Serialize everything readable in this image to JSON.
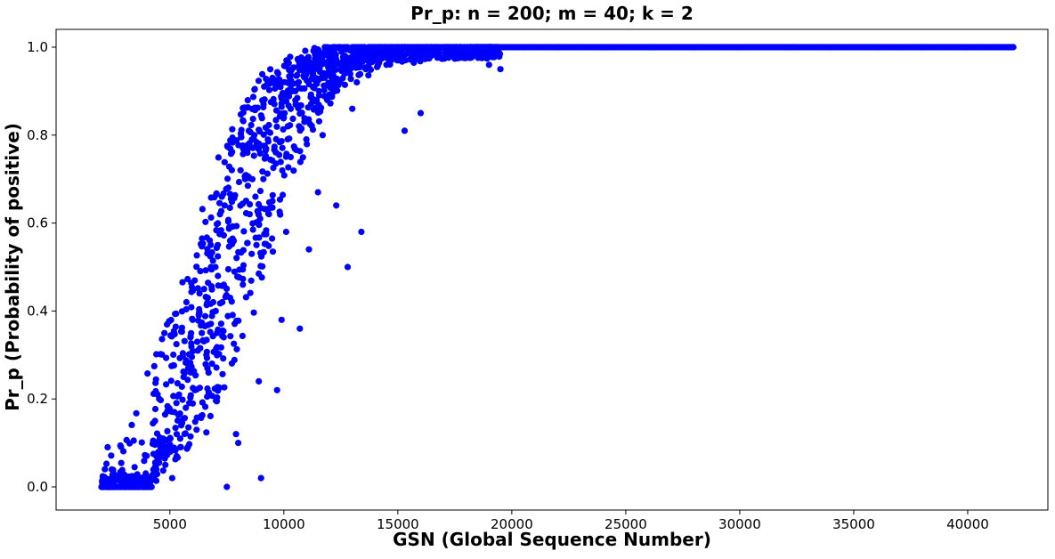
{
  "chart_data": {
    "type": "scatter",
    "title": "Pr_p: n = 200; m = 40; k = 2",
    "xlabel": "GSN (Global Sequence Number)",
    "ylabel": "Pr_p (Probability of positive)",
    "xlim": [
      0,
      43500
    ],
    "ylim": [
      -0.05,
      1.05
    ],
    "xticks": [
      5000,
      10000,
      15000,
      20000,
      25000,
      30000,
      35000,
      40000
    ],
    "xtick_labels": [
      "5000",
      "10000",
      "15000",
      "20000",
      "25000",
      "30000",
      "35000",
      "40000"
    ],
    "yticks": [
      0.0,
      0.2,
      0.4,
      0.6,
      0.8,
      1.0
    ],
    "ytick_labels": [
      "0.0",
      "0.2",
      "0.4",
      "0.6",
      "0.8",
      "1.0"
    ],
    "grid": false,
    "legend": "none",
    "series": [
      {
        "color": "#0000ff",
        "marker": "circle",
        "x_range": [
          2000,
          42000
        ],
        "points": [
          [
            2000,
            0.0
          ],
          [
            2400,
            0.0
          ],
          [
            2800,
            0.0
          ],
          [
            3200,
            0.0
          ],
          [
            3600,
            0.0
          ],
          [
            4000,
            0.0
          ],
          [
            3400,
            0.005
          ],
          [
            3900,
            0.01
          ],
          [
            4200,
            0.0
          ],
          [
            4300,
            0.02
          ],
          [
            4400,
            0.04
          ],
          [
            4500,
            0.06
          ],
          [
            4600,
            0.1
          ],
          [
            4700,
            0.11
          ],
          [
            4800,
            0.05
          ],
          [
            5000,
            0.08
          ],
          [
            5100,
            0.02
          ],
          [
            5200,
            0.17
          ],
          [
            5300,
            0.12
          ],
          [
            5400,
            0.21
          ],
          [
            5500,
            0.14
          ],
          [
            5600,
            0.25
          ],
          [
            5700,
            0.18
          ],
          [
            5800,
            0.27
          ],
          [
            5900,
            0.34
          ],
          [
            6000,
            0.38
          ],
          [
            6100,
            0.22
          ],
          [
            6200,
            0.33
          ],
          [
            6300,
            0.44
          ],
          [
            6400,
            0.35
          ],
          [
            6500,
            0.45
          ],
          [
            6600,
            0.3
          ],
          [
            6700,
            0.26
          ],
          [
            6800,
            0.5
          ],
          [
            6900,
            0.42
          ],
          [
            7000,
            0.5
          ],
          [
            7100,
            0.55
          ],
          [
            7200,
            0.62
          ],
          [
            7300,
            0.42
          ],
          [
            7400,
            0.64
          ],
          [
            7500,
            0.0
          ],
          [
            7600,
            0.59
          ],
          [
            7700,
            0.66
          ],
          [
            7800,
            0.56
          ],
          [
            7900,
            0.12
          ],
          [
            8000,
            0.1
          ],
          [
            8100,
            0.72
          ],
          [
            8200,
            0.46
          ],
          [
            8300,
            0.7
          ],
          [
            8400,
            0.76
          ],
          [
            8500,
            0.62
          ],
          [
            8600,
            0.79
          ],
          [
            8700,
            0.8
          ],
          [
            8800,
            0.55
          ],
          [
            8900,
            0.24
          ],
          [
            9000,
            0.02
          ],
          [
            9100,
            0.7
          ],
          [
            9300,
            0.79
          ],
          [
            9500,
            0.65
          ],
          [
            9700,
            0.22
          ],
          [
            9900,
            0.38
          ],
          [
            10000,
            0.84
          ],
          [
            10100,
            0.58
          ],
          [
            10300,
            0.75
          ],
          [
            10500,
            0.9
          ],
          [
            10700,
            0.36
          ],
          [
            10900,
            0.83
          ],
          [
            11100,
            0.54
          ],
          [
            11300,
            0.91
          ],
          [
            11500,
            0.67
          ],
          [
            11700,
            0.8
          ],
          [
            11900,
            0.88
          ],
          [
            12100,
            0.93
          ],
          [
            12300,
            0.64
          ],
          [
            12500,
            0.95
          ],
          [
            12800,
            0.5
          ],
          [
            13000,
            0.86
          ],
          [
            13200,
            0.92
          ],
          [
            13400,
            0.58
          ],
          [
            13600,
            0.95
          ],
          [
            14000,
            0.97
          ],
          [
            14500,
            0.96
          ],
          [
            15000,
            0.97
          ],
          [
            15300,
            0.81
          ],
          [
            15700,
            0.98
          ],
          [
            16000,
            0.85
          ],
          [
            16500,
            0.99
          ],
          [
            17500,
            0.99
          ],
          [
            18500,
            1.0
          ],
          [
            19000,
            0.96
          ],
          [
            19500,
            0.95
          ],
          [
            20500,
            1.0
          ],
          [
            22000,
            1.0
          ],
          [
            24000,
            1.0
          ],
          [
            26000,
            1.0
          ],
          [
            28000,
            1.0
          ],
          [
            30000,
            1.0
          ],
          [
            32000,
            1.0
          ],
          [
            34000,
            1.0
          ],
          [
            36000,
            1.0
          ],
          [
            38000,
            1.0
          ],
          [
            40000,
            1.0
          ],
          [
            42000,
            1.0
          ]
        ]
      }
    ]
  }
}
